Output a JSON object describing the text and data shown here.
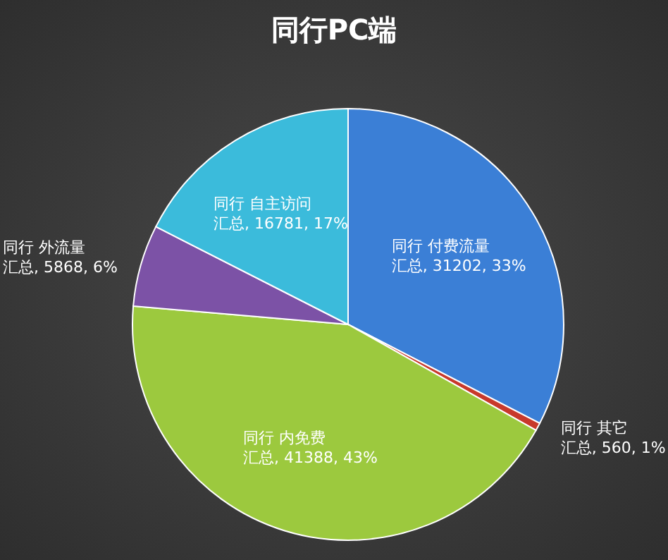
{
  "chart_data": {
    "type": "pie",
    "title": "同行PC端",
    "categories": [
      "同行 付费流量",
      "同行 其它",
      "同行 内免费",
      "同行 外流量",
      "同行 自主访问"
    ],
    "values": [
      31202,
      560,
      41388,
      5868,
      16781
    ],
    "value_labels": [
      "汇总, 31202, 33%",
      "汇总, 560, 1%",
      "汇总, 41388, 43%",
      "汇总, 5868, 6%",
      "汇总, 16781, 17%"
    ],
    "colors": [
      "#3b7fd6",
      "#c8392b",
      "#9cc93e",
      "#7c52a6",
      "#3bbbdb"
    ]
  }
}
